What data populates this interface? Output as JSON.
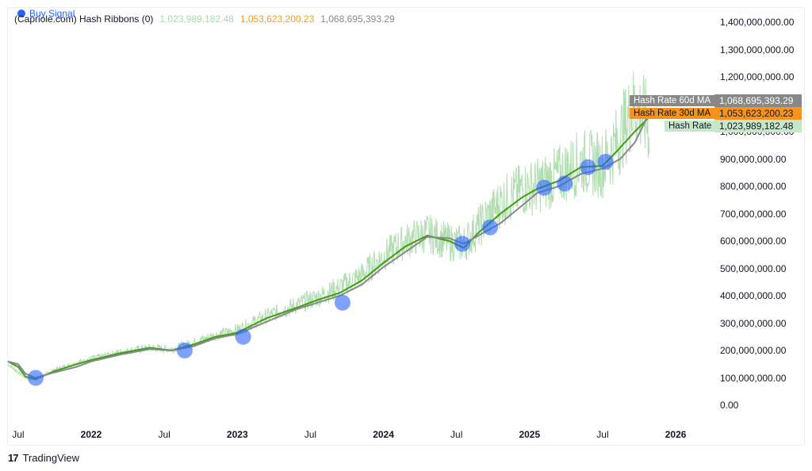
{
  "header": {
    "indicator_name": "(Capriole.com) Hash Ribbons (0)",
    "value_hash_rate": "1,023,989,182.48",
    "value_ma30": "1,053,623,200.23",
    "value_ma60": "1,068,695,393.29",
    "buy_signal_label": "Buy Signal"
  },
  "colors": {
    "hash_rate": "#a9d9a9",
    "ma30": "#f29b1b",
    "ma60": "#888888",
    "ma_green": "#1aa51a",
    "buy_signal": "#2962ff"
  },
  "branding": {
    "logo_text": "TradingView"
  },
  "chart_data": {
    "type": "line",
    "y_axis": {
      "ticks": [
        "1,400,000,000.00",
        "1,300,000,000.00",
        "1,200,000,000.00",
        "1,100,000,000.00",
        "1,000,000,000.00",
        "900,000,000.00",
        "800,000,000.00",
        "700,000,000.00",
        "600,000,000.00",
        "500,000,000.00",
        "400,000,000.00",
        "300,000,000.00",
        "200,000,000.00",
        "100,000,000.00",
        "0.00"
      ],
      "tick_values": [
        1400000000,
        1300000000,
        1200000000,
        1100000000,
        1000000000,
        900000000,
        800000000,
        700000000,
        600000000,
        500000000,
        400000000,
        300000000,
        200000000,
        100000000,
        0
      ],
      "range": [
        0,
        1400000000
      ]
    },
    "x_axis": {
      "ticks": [
        {
          "label": "Jul",
          "year": false,
          "t": 2021.5
        },
        {
          "label": "2022",
          "year": true,
          "t": 2022.0
        },
        {
          "label": "Jul",
          "year": false,
          "t": 2022.5
        },
        {
          "label": "2023",
          "year": true,
          "t": 2023.0
        },
        {
          "label": "Jul",
          "year": false,
          "t": 2023.5
        },
        {
          "label": "2024",
          "year": true,
          "t": 2024.0
        },
        {
          "label": "Jul",
          "year": false,
          "t": 2024.5
        },
        {
          "label": "2025",
          "year": true,
          "t": 2025.0
        },
        {
          "label": "Jul",
          "year": false,
          "t": 2025.5
        },
        {
          "label": "2026",
          "year": true,
          "t": 2026.0
        }
      ],
      "range": [
        2021.43,
        2026.26
      ]
    },
    "series": [
      {
        "name": "Hash Rate 60d MA",
        "value_label": "1,068,695,393.29",
        "color": "#888888",
        "points": [
          [
            2021.43,
            160000000
          ],
          [
            2021.5,
            150000000
          ],
          [
            2021.55,
            115000000
          ],
          [
            2021.62,
            100000000
          ],
          [
            2021.75,
            120000000
          ],
          [
            2021.9,
            140000000
          ],
          [
            2022.0,
            160000000
          ],
          [
            2022.2,
            185000000
          ],
          [
            2022.4,
            205000000
          ],
          [
            2022.55,
            200000000
          ],
          [
            2022.7,
            215000000
          ],
          [
            2022.85,
            245000000
          ],
          [
            2023.0,
            260000000
          ],
          [
            2023.2,
            305000000
          ],
          [
            2023.4,
            350000000
          ],
          [
            2023.55,
            375000000
          ],
          [
            2023.7,
            400000000
          ],
          [
            2023.85,
            440000000
          ],
          [
            2024.0,
            505000000
          ],
          [
            2024.15,
            560000000
          ],
          [
            2024.3,
            615000000
          ],
          [
            2024.45,
            610000000
          ],
          [
            2024.55,
            590000000
          ],
          [
            2024.65,
            620000000
          ],
          [
            2024.8,
            665000000
          ],
          [
            2024.95,
            730000000
          ],
          [
            2025.05,
            775000000
          ],
          [
            2025.2,
            800000000
          ],
          [
            2025.35,
            845000000
          ],
          [
            2025.5,
            865000000
          ],
          [
            2025.62,
            900000000
          ],
          [
            2025.72,
            960000000
          ],
          [
            2025.82,
            1068695393
          ]
        ]
      },
      {
        "name": "Hash Rate 30d MA",
        "value_label": "1,053,623,200.23",
        "color": "#f29b1b",
        "points": [
          [
            2021.43,
            160000000
          ],
          [
            2021.5,
            140000000
          ],
          [
            2021.55,
            105000000
          ],
          [
            2021.62,
            95000000
          ],
          [
            2021.75,
            125000000
          ],
          [
            2021.9,
            150000000
          ],
          [
            2022.0,
            165000000
          ],
          [
            2022.2,
            190000000
          ],
          [
            2022.4,
            210000000
          ],
          [
            2022.55,
            200000000
          ],
          [
            2022.7,
            222000000
          ],
          [
            2022.85,
            250000000
          ],
          [
            2023.0,
            265000000
          ],
          [
            2023.2,
            318000000
          ],
          [
            2023.4,
            355000000
          ],
          [
            2023.55,
            385000000
          ],
          [
            2023.7,
            410000000
          ],
          [
            2023.85,
            455000000
          ],
          [
            2024.0,
            520000000
          ],
          [
            2024.15,
            580000000
          ],
          [
            2024.3,
            620000000
          ],
          [
            2024.45,
            600000000
          ],
          [
            2024.55,
            575000000
          ],
          [
            2024.65,
            630000000
          ],
          [
            2024.8,
            700000000
          ],
          [
            2024.95,
            760000000
          ],
          [
            2025.05,
            790000000
          ],
          [
            2025.2,
            820000000
          ],
          [
            2025.35,
            870000000
          ],
          [
            2025.5,
            875000000
          ],
          [
            2025.6,
            930000000
          ],
          [
            2025.72,
            1000000000
          ],
          [
            2025.82,
            1053623200
          ]
        ]
      },
      {
        "name": "Hash Rate",
        "value_label": "1,023,989,182.48",
        "color": "#a9d9a9",
        "points": [
          [
            2021.43,
            150000000
          ],
          [
            2021.55,
            100000000
          ],
          [
            2021.62,
            95000000
          ],
          [
            2021.75,
            130000000
          ],
          [
            2021.9,
            155000000
          ],
          [
            2022.0,
            170000000
          ],
          [
            2022.2,
            195000000
          ],
          [
            2022.4,
            210000000
          ],
          [
            2022.55,
            205000000
          ],
          [
            2022.7,
            230000000
          ],
          [
            2022.85,
            255000000
          ],
          [
            2023.0,
            275000000
          ],
          [
            2023.2,
            325000000
          ],
          [
            2023.4,
            365000000
          ],
          [
            2023.55,
            395000000
          ],
          [
            2023.7,
            430000000
          ],
          [
            2023.85,
            475000000
          ],
          [
            2024.0,
            545000000
          ],
          [
            2024.15,
            600000000
          ],
          [
            2024.3,
            630000000
          ],
          [
            2024.45,
            595000000
          ],
          [
            2024.55,
            590000000
          ],
          [
            2024.65,
            650000000
          ],
          [
            2024.8,
            740000000
          ],
          [
            2024.95,
            790000000
          ],
          [
            2025.05,
            800000000
          ],
          [
            2025.2,
            840000000
          ],
          [
            2025.35,
            890000000
          ],
          [
            2025.5,
            880000000
          ],
          [
            2025.6,
            960000000
          ],
          [
            2025.72,
            1100000000
          ],
          [
            2025.82,
            1023989182
          ]
        ]
      }
    ],
    "buy_signals": [
      {
        "t": 2021.62,
        "value": 100000000
      },
      {
        "t": 2022.64,
        "value": 200000000
      },
      {
        "t": 2023.04,
        "value": 250000000
      },
      {
        "t": 2023.72,
        "value": 375000000
      },
      {
        "t": 2024.54,
        "value": 590000000
      },
      {
        "t": 2024.73,
        "value": 650000000
      },
      {
        "t": 2025.1,
        "value": 795000000
      },
      {
        "t": 2025.24,
        "value": 810000000
      },
      {
        "t": 2025.4,
        "value": 870000000
      },
      {
        "t": 2025.52,
        "value": 890000000
      }
    ]
  }
}
